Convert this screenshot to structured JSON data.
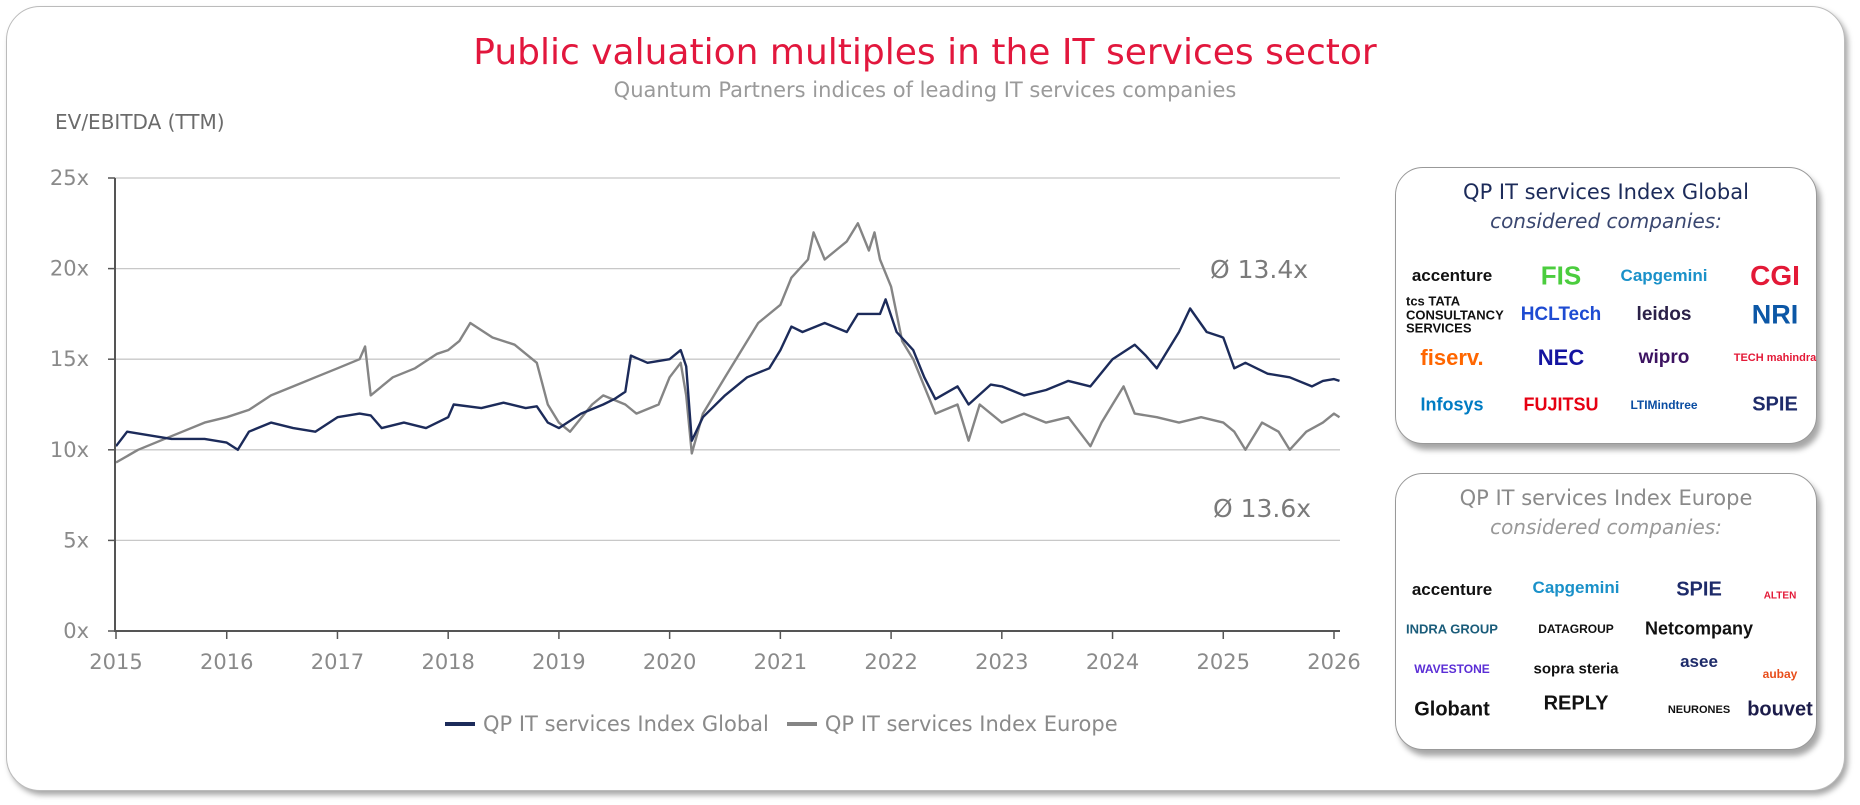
{
  "title": "Public valuation multiples in the IT services sector",
  "subtitle": "Quantum Partners indices of leading IT services companies",
  "colors": {
    "title": "#e2173d",
    "global": "#1c2b5a",
    "europe": "#858585",
    "grid": "#c8c8c8"
  },
  "chart_data": {
    "type": "line",
    "ylabel": "EV/EBITDA (TTM)",
    "ylim": [
      0,
      25
    ],
    "yticks": [
      "0x",
      "5x",
      "10x",
      "15x",
      "20x",
      "25x"
    ],
    "xlim": [
      2015,
      2026.05
    ],
    "xticks": [
      "2015",
      "2016",
      "2017",
      "2018",
      "2019",
      "2020",
      "2021",
      "2022",
      "2023",
      "2024",
      "2025",
      "2026"
    ],
    "grid": "horizontal",
    "legend": "bottom",
    "annotations": [
      "Ø 13.4x",
      "Ø 13.6x"
    ],
    "series": [
      {
        "name": "QP IT services Index Global",
        "color": "#1c2b5a",
        "x": [
          2015.0,
          2015.1,
          2015.3,
          2015.5,
          2015.8,
          2016.0,
          2016.1,
          2016.2,
          2016.4,
          2016.6,
          2016.8,
          2017.0,
          2017.2,
          2017.3,
          2017.4,
          2017.6,
          2017.8,
          2018.0,
          2018.05,
          2018.3,
          2018.5,
          2018.7,
          2018.8,
          2018.9,
          2019.0,
          2019.2,
          2019.4,
          2019.5,
          2019.6,
          2019.65,
          2019.8,
          2020.0,
          2020.1,
          2020.15,
          2020.2,
          2020.3,
          2020.5,
          2020.7,
          2020.9,
          2021.0,
          2021.1,
          2021.2,
          2021.4,
          2021.6,
          2021.7,
          2021.9,
          2021.95,
          2022.05,
          2022.2,
          2022.3,
          2022.4,
          2022.6,
          2022.7,
          2022.9,
          2023.0,
          2023.2,
          2023.4,
          2023.6,
          2023.8,
          2024.0,
          2024.2,
          2024.3,
          2024.4,
          2024.6,
          2024.7,
          2024.85,
          2025.0,
          2025.1,
          2025.2,
          2025.4,
          2025.6,
          2025.8,
          2025.9,
          2026.0,
          2026.05
        ],
        "y": [
          10.2,
          11.0,
          10.8,
          10.6,
          10.6,
          10.4,
          10.0,
          11.0,
          11.5,
          11.2,
          11.0,
          11.8,
          12.0,
          11.9,
          11.2,
          11.5,
          11.2,
          11.8,
          12.5,
          12.3,
          12.6,
          12.3,
          12.4,
          11.5,
          11.2,
          12.0,
          12.5,
          12.8,
          13.2,
          15.2,
          14.8,
          15.0,
          15.5,
          14.6,
          10.5,
          11.8,
          13.0,
          14.0,
          14.5,
          15.5,
          16.8,
          16.5,
          17.0,
          16.5,
          17.5,
          17.5,
          18.3,
          16.5,
          15.5,
          14.0,
          12.8,
          13.5,
          12.5,
          13.6,
          13.5,
          13.0,
          13.3,
          13.8,
          13.5,
          15.0,
          15.8,
          15.2,
          14.5,
          16.5,
          17.8,
          16.5,
          16.2,
          14.5,
          14.8,
          14.2,
          14.0,
          13.5,
          13.8,
          13.9,
          13.8
        ]
      },
      {
        "name": "QP IT services Index Europe",
        "color": "#858585",
        "x": [
          2015.0,
          2015.2,
          2015.4,
          2015.6,
          2015.8,
          2016.0,
          2016.2,
          2016.4,
          2016.6,
          2016.8,
          2017.0,
          2017.2,
          2017.25,
          2017.3,
          2017.5,
          2017.7,
          2017.9,
          2018.0,
          2018.1,
          2018.2,
          2018.4,
          2018.6,
          2018.8,
          2018.9,
          2019.0,
          2019.1,
          2019.3,
          2019.4,
          2019.6,
          2019.7,
          2019.9,
          2020.0,
          2020.1,
          2020.15,
          2020.2,
          2020.3,
          2020.5,
          2020.7,
          2020.8,
          2021.0,
          2021.1,
          2021.25,
          2021.3,
          2021.4,
          2021.5,
          2021.6,
          2021.7,
          2021.8,
          2021.85,
          2021.9,
          2022.0,
          2022.1,
          2022.2,
          2022.3,
          2022.4,
          2022.6,
          2022.7,
          2022.8,
          2023.0,
          2023.2,
          2023.4,
          2023.6,
          2023.8,
          2023.9,
          2024.0,
          2024.1,
          2024.2,
          2024.4,
          2024.6,
          2024.8,
          2025.0,
          2025.1,
          2025.2,
          2025.35,
          2025.5,
          2025.6,
          2025.75,
          2025.9,
          2026.0,
          2026.05
        ],
        "y": [
          9.3,
          10.0,
          10.5,
          11.0,
          11.5,
          11.8,
          12.2,
          13.0,
          13.5,
          14.0,
          14.5,
          15.0,
          15.7,
          13.0,
          14.0,
          14.5,
          15.3,
          15.5,
          16.0,
          17.0,
          16.2,
          15.8,
          14.8,
          12.5,
          11.5,
          11.0,
          12.5,
          13.0,
          12.5,
          12.0,
          12.5,
          14.0,
          14.8,
          13.0,
          9.8,
          12.0,
          14.0,
          16.0,
          17.0,
          18.0,
          19.5,
          20.5,
          22.0,
          20.5,
          21.0,
          21.5,
          22.5,
          21.0,
          22.0,
          20.5,
          19.0,
          16.0,
          15.0,
          13.5,
          12.0,
          12.5,
          10.5,
          12.5,
          11.5,
          12.0,
          11.5,
          11.8,
          10.2,
          11.5,
          12.5,
          13.5,
          12.0,
          11.8,
          11.5,
          11.8,
          11.5,
          11.0,
          10.0,
          11.5,
          11.0,
          10.0,
          11.0,
          11.5,
          12.0,
          11.8
        ]
      }
    ]
  },
  "global_box": {
    "title": "QP IT services Index Global",
    "subtitle": "considered companies:",
    "logos": [
      "accenture",
      "FIS",
      "Capgemini",
      "CGI",
      "tcs TATA CONSULTANCY SERVICES",
      "HCLTech",
      "leidos",
      "NRI",
      "fiserv.",
      "NEC",
      "wipro",
      "TECH mahindra",
      "Infosys",
      "FUJITSU",
      "LTIMindtree",
      "SPIE"
    ]
  },
  "europe_box": {
    "title": "QP IT services Index Europe",
    "subtitle": "considered companies:",
    "logos": [
      "accenture",
      "Capgemini",
      "SPIE",
      "ALTEN",
      "INDRA GROUP",
      "DATAGROUP",
      "Netcompany",
      "aubay",
      "WAVESTONE",
      "sopra steria",
      "asee",
      "Globant",
      "REPLY",
      "NEURONES",
      "bouvet"
    ]
  }
}
